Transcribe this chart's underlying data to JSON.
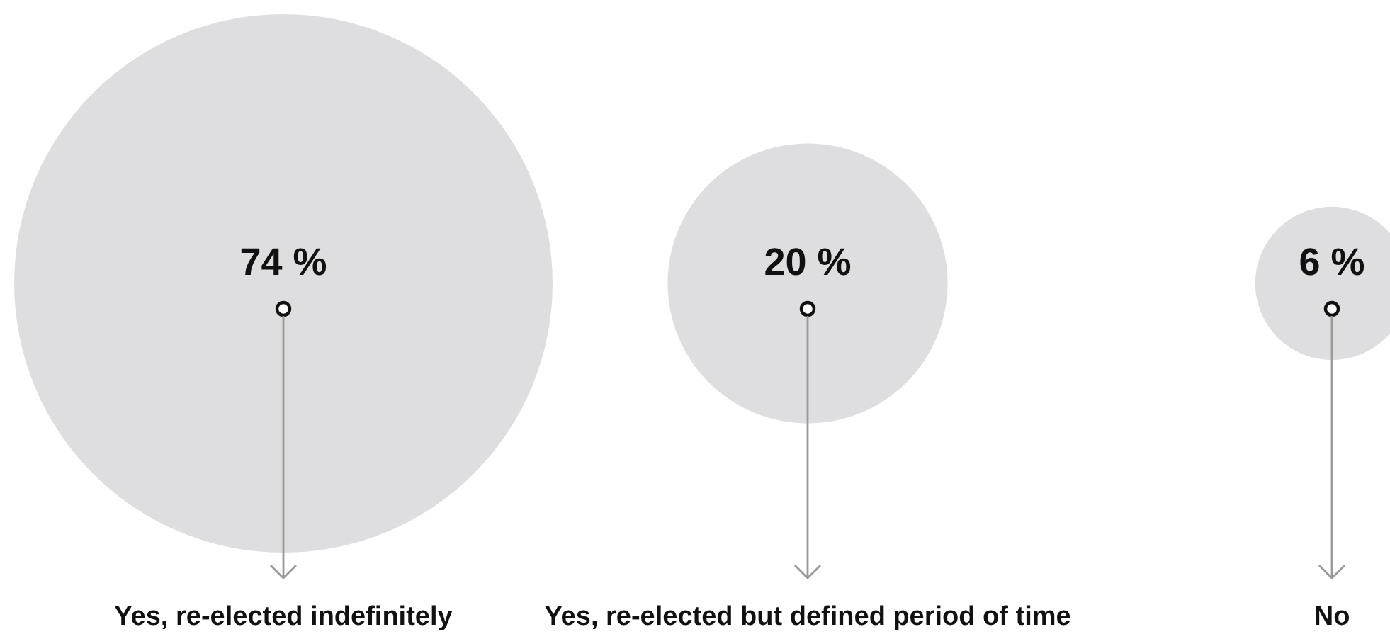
{
  "chart_data": {
    "type": "other",
    "categories": [
      "Yes, re-elected indefinitely",
      "Yes, re-elected but defined period of time",
      "No"
    ],
    "series": [
      {
        "color": "#dedee0",
        "values": [
          74,
          20,
          6
        ],
        "value_labels": [
          "74 %",
          "20 %",
          "6 %"
        ]
      }
    ]
  }
}
